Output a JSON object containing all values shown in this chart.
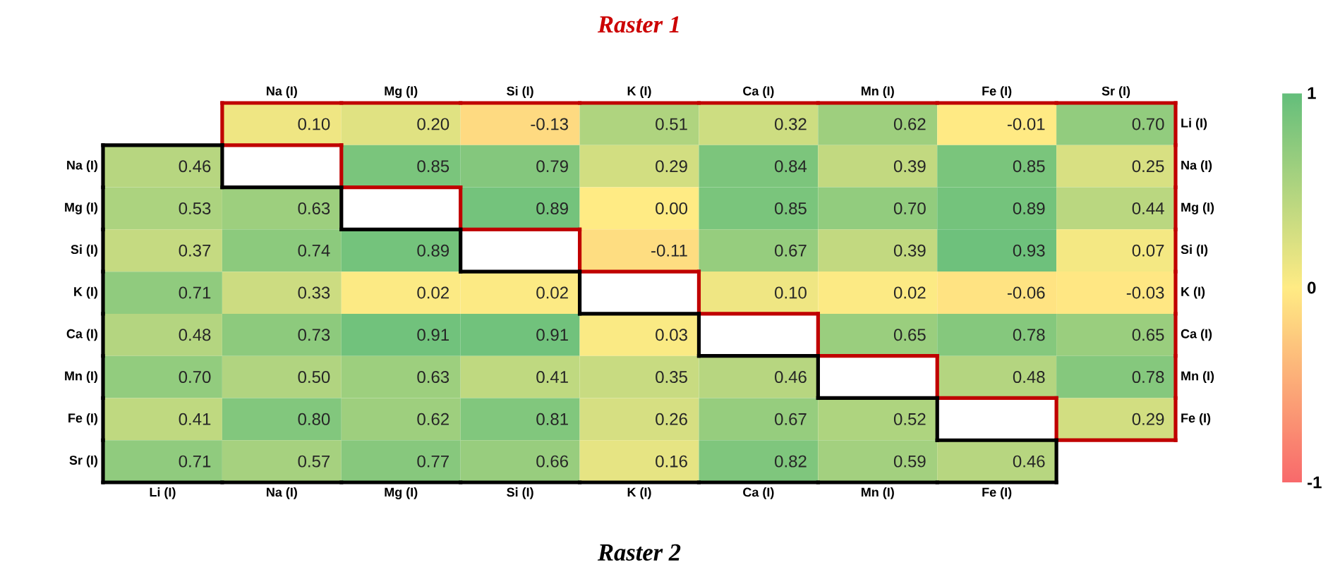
{
  "chart_data": [
    {
      "type": "heatmap",
      "title": "Raster 1",
      "categories": [
        "Na (I)",
        "Mg (I)",
        "Si (I)",
        "K (I)",
        "Ca (I)",
        "Mn (I)",
        "Fe (I)",
        "Sr (I)"
      ],
      "y_categories": [
        "Li (I)",
        "Na (I)",
        "Mg (I)",
        "Si (I)",
        "K (I)",
        "Ca (I)",
        "Mn (I)",
        "Fe (I)"
      ],
      "cells": [
        [
          0.1,
          0.2,
          -0.13,
          0.51,
          0.32,
          0.62,
          -0.01,
          0.7
        ],
        [
          null,
          0.85,
          0.79,
          0.29,
          0.84,
          0.39,
          0.85,
          0.25
        ],
        [
          null,
          null,
          0.89,
          0.0,
          0.85,
          0.7,
          0.89,
          0.44
        ],
        [
          null,
          null,
          null,
          -0.11,
          0.67,
          0.39,
          0.93,
          0.07
        ],
        [
          null,
          null,
          null,
          null,
          0.1,
          0.02,
          -0.06,
          -0.03
        ],
        [
          null,
          null,
          null,
          null,
          null,
          0.65,
          0.78,
          0.65
        ],
        [
          null,
          null,
          null,
          null,
          null,
          null,
          0.48,
          0.78
        ],
        [
          null,
          null,
          null,
          null,
          null,
          null,
          null,
          0.29
        ]
      ],
      "cell_labels": [
        [
          "0.10",
          "0.20",
          "-0.13",
          "0.51",
          "0.32",
          "0.62",
          "-0.01",
          "0.70"
        ],
        [
          null,
          "0.85",
          "0.79",
          "0.29",
          "0.84",
          "0.39",
          "0.85",
          "0.25"
        ],
        [
          null,
          null,
          "0.89",
          "0.00",
          "0.85",
          "0.70",
          "0.89",
          "0.44"
        ],
        [
          null,
          null,
          null,
          "-0.11",
          "0.67",
          "0.39",
          "0.93",
          "0.07"
        ],
        [
          null,
          null,
          null,
          null,
          "0.10",
          "0.02",
          "-0.06",
          "-0.03"
        ],
        [
          null,
          null,
          null,
          null,
          null,
          "0.65",
          "0.78",
          "0.65"
        ],
        [
          null,
          null,
          null,
          null,
          null,
          null,
          "0.48",
          "0.78"
        ],
        [
          null,
          null,
          null,
          null,
          null,
          null,
          null,
          "0.29"
        ]
      ],
      "clim": [
        -1,
        1
      ],
      "cticks": [
        -1,
        0,
        1
      ]
    },
    {
      "type": "heatmap",
      "title": "Raster 2",
      "categories": [
        "Li (I)",
        "Na (I)",
        "Mg (I)",
        "Si (I)",
        "K (I)",
        "Ca (I)",
        "Mn (I)",
        "Fe (I)"
      ],
      "y_categories": [
        "Na (I)",
        "Mg (I)",
        "Si (I)",
        "K (I)",
        "Ca (I)",
        "Mn (I)",
        "Fe (I)",
        "Sr (I)"
      ],
      "cells": [
        [
          0.46,
          null,
          null,
          null,
          null,
          null,
          null,
          null
        ],
        [
          0.53,
          0.63,
          null,
          null,
          null,
          null,
          null,
          null
        ],
        [
          0.37,
          0.74,
          0.89,
          null,
          null,
          null,
          null,
          null
        ],
        [
          0.71,
          0.33,
          0.02,
          0.02,
          null,
          null,
          null,
          null
        ],
        [
          0.48,
          0.73,
          0.91,
          0.91,
          0.03,
          null,
          null,
          null
        ],
        [
          0.7,
          0.5,
          0.63,
          0.41,
          0.35,
          0.46,
          null,
          null
        ],
        [
          0.41,
          0.8,
          0.62,
          0.81,
          0.26,
          0.67,
          0.52,
          null
        ],
        [
          0.71,
          0.57,
          0.77,
          0.66,
          0.16,
          0.82,
          0.59,
          0.46
        ]
      ],
      "cell_labels": [
        [
          "0.46",
          null,
          null,
          null,
          null,
          null,
          null,
          null
        ],
        [
          "0.53",
          "0.63",
          null,
          null,
          null,
          null,
          null,
          null
        ],
        [
          "0.37",
          "0.74",
          "0.89",
          null,
          null,
          null,
          null,
          null
        ],
        [
          "0.71",
          "0.33",
          "0.02",
          "0.02",
          null,
          null,
          null,
          null
        ],
        [
          "0.48",
          "0.73",
          "0.91",
          "0.91",
          "0.03",
          null,
          null,
          null
        ],
        [
          "0.70",
          "0.50",
          "0.63",
          "0.41",
          "0.35",
          "0.46",
          null,
          null
        ],
        [
          "0.41",
          "0.80",
          "0.62",
          "0.81",
          "0.26",
          "0.67",
          "0.52",
          null
        ],
        [
          "0.71",
          "0.57",
          "0.77",
          "0.66",
          "0.16",
          "0.82",
          "0.59",
          "0.46"
        ]
      ]
    }
  ]
}
